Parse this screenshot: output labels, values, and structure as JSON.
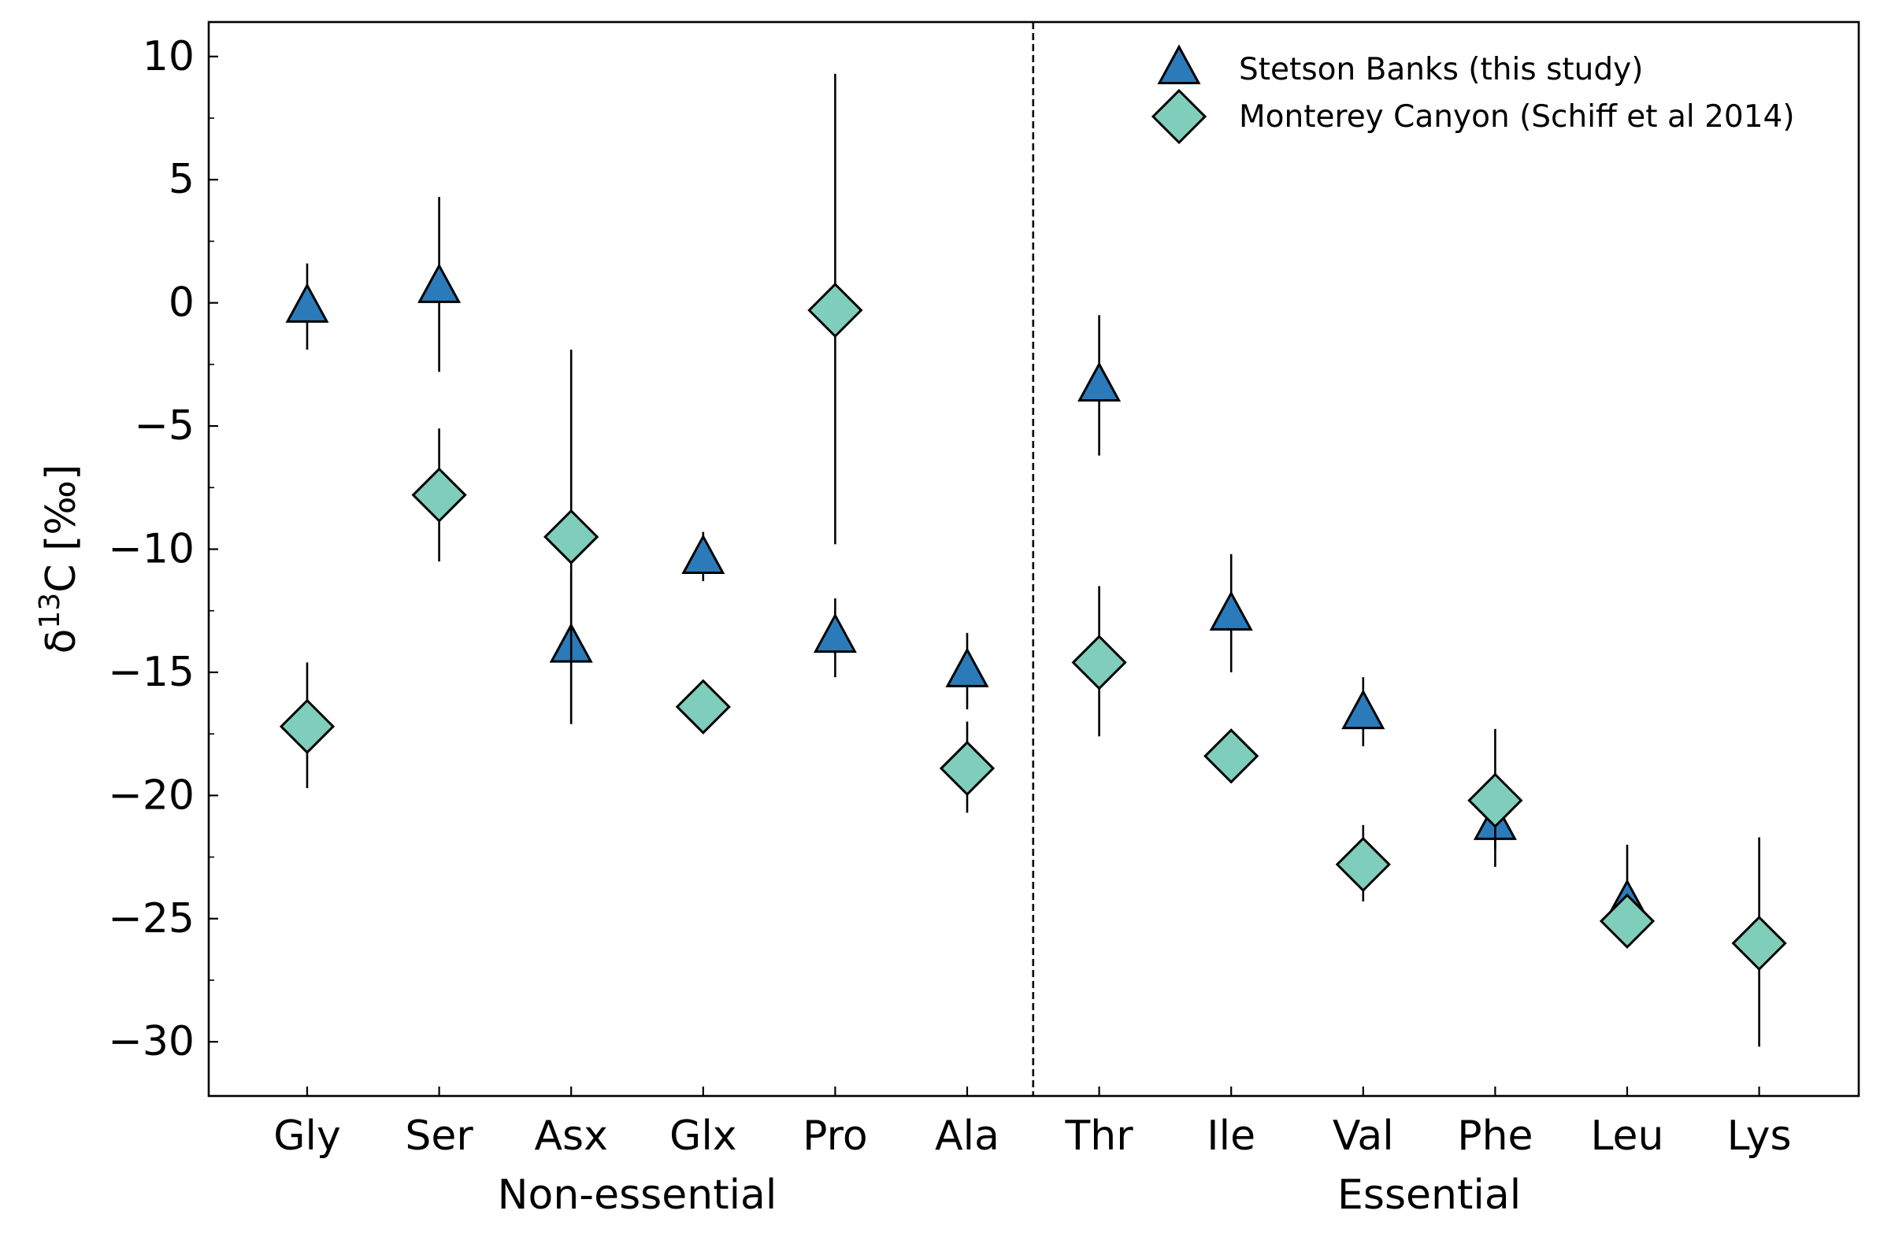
{
  "chart_data": {
    "type": "scatter",
    "title": "",
    "xlabel": "",
    "ylabel": {
      "base": "δ",
      "sup": "13",
      "rest": "C [‰]"
    },
    "categories": [
      "Gly",
      "Ser",
      "Asx",
      "Glx",
      "Pro",
      "Ala",
      "Thr",
      "Ile",
      "Val",
      "Phe",
      "Leu",
      "Lys"
    ],
    "groups": [
      {
        "label": "Non-essential",
        "categories": [
          "Gly",
          "Ser",
          "Asx",
          "Glx",
          "Pro",
          "Ala"
        ]
      },
      {
        "label": "Essential",
        "categories": [
          "Thr",
          "Ile",
          "Val",
          "Phe",
          "Leu",
          "Lys"
        ]
      }
    ],
    "ylim": [
      -32.2,
      11.4
    ],
    "yticks": [
      10,
      5,
      0,
      -5,
      -10,
      -15,
      -20,
      -25,
      -30
    ],
    "ytick_labels": [
      "10",
      "5",
      "0",
      "−5",
      "−10",
      "−15",
      "−20",
      "−25",
      "−30"
    ],
    "divider_after_category": "Ala",
    "legend_position": "upper-right",
    "series": [
      {
        "name": "Stetson Banks (this study)",
        "marker": "triangle",
        "color": "#2b7bba",
        "points": [
          {
            "x": "Gly",
            "y": -0.2,
            "err_low": -1.9,
            "err_high": 1.6
          },
          {
            "x": "Ser",
            "y": 0.6,
            "err_low": -2.8,
            "err_high": 4.3
          },
          {
            "x": "Asx",
            "y": -14.0,
            "err_low": -17.1,
            "err_high": -11.0
          },
          {
            "x": "Glx",
            "y": -10.4,
            "err_low": -11.3,
            "err_high": -9.3
          },
          {
            "x": "Pro",
            "y": -13.6,
            "err_low": -15.2,
            "err_high": -12.0
          },
          {
            "x": "Ala",
            "y": -15.0,
            "err_low": -16.5,
            "err_high": -13.4
          },
          {
            "x": "Thr",
            "y": -3.4,
            "err_low": -6.2,
            "err_high": -0.5
          },
          {
            "x": "Ile",
            "y": -12.7,
            "err_low": -15.0,
            "err_high": -10.2
          },
          {
            "x": "Val",
            "y": -16.7,
            "err_low": -18.0,
            "err_high": -15.2
          },
          {
            "x": "Phe",
            "y": -21.2,
            "err_low": -22.9,
            "err_high": -19.7
          },
          {
            "x": "Leu",
            "y": -24.4,
            "err_low": -26.1,
            "err_high": -22.0
          },
          {
            "x": "Lys",
            "y": null,
            "err_low": null,
            "err_high": null
          }
        ]
      },
      {
        "name": "Monterey Canyon (Schiff et al 2014)",
        "marker": "diamond",
        "color": "#7fcdbb",
        "points": [
          {
            "x": "Gly",
            "y": -17.2,
            "err_low": -19.7,
            "err_high": -14.6
          },
          {
            "x": "Ser",
            "y": -7.8,
            "err_low": -10.5,
            "err_high": -5.1
          },
          {
            "x": "Asx",
            "y": -9.5,
            "err_low": -17.1,
            "err_high": -1.9
          },
          {
            "x": "Glx",
            "y": -16.4,
            "err_low": -17.0,
            "err_high": -15.7
          },
          {
            "x": "Pro",
            "y": -0.3,
            "err_low": -9.8,
            "err_high": 9.3
          },
          {
            "x": "Ala",
            "y": -18.9,
            "err_low": -20.7,
            "err_high": -17.0
          },
          {
            "x": "Thr",
            "y": -14.6,
            "err_low": -17.6,
            "err_high": -11.5
          },
          {
            "x": "Ile",
            "y": -18.4,
            "err_low": -19.0,
            "err_high": -17.7
          },
          {
            "x": "Val",
            "y": -22.8,
            "err_low": -24.3,
            "err_high": -21.2
          },
          {
            "x": "Phe",
            "y": -20.2,
            "err_low": -22.2,
            "err_high": -17.3
          },
          {
            "x": "Leu",
            "y": -25.1,
            "err_low": -26.1,
            "err_high": -24.1
          },
          {
            "x": "Lys",
            "y": -26.0,
            "err_low": -30.2,
            "err_high": -21.7
          }
        ]
      }
    ]
  }
}
